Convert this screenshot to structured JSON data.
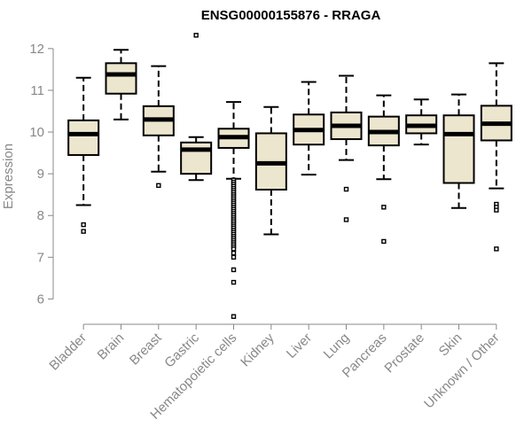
{
  "chart_data": {
    "type": "box",
    "title": "ENSG00000155876 - RRAGA",
    "ylabel": "Expression",
    "xlabel": "",
    "ylim": [
      5.5,
      12.4
    ],
    "yticks": [
      6,
      7,
      8,
      9,
      10,
      11,
      12
    ],
    "grid": false,
    "colors": {
      "box_fill": "#ede6cf",
      "box_stroke": "#000000",
      "median": "#000000",
      "axis": "#888888"
    },
    "categories": [
      "Bladder",
      "Brain",
      "Breast",
      "Gastric",
      "Hematopoietic cells",
      "Kidney",
      "Liver",
      "Lung",
      "Pancreas",
      "Prostate",
      "Skin",
      "Unknown / Other"
    ],
    "boxes": [
      {
        "name": "Bladder",
        "whisker_low": 8.25,
        "q1": 9.45,
        "median": 9.95,
        "q3": 10.28,
        "whisker_high": 11.3,
        "outliers": [
          7.78,
          7.62
        ]
      },
      {
        "name": "Brain",
        "whisker_low": 10.3,
        "q1": 10.92,
        "median": 11.38,
        "q3": 11.65,
        "whisker_high": 11.97,
        "outliers": []
      },
      {
        "name": "Breast",
        "whisker_low": 9.05,
        "q1": 9.92,
        "median": 10.3,
        "q3": 10.62,
        "whisker_high": 11.58,
        "outliers": [
          8.72
        ]
      },
      {
        "name": "Gastric",
        "whisker_low": 8.85,
        "q1": 9.0,
        "median": 9.58,
        "q3": 9.75,
        "whisker_high": 9.88,
        "outliers": [
          12.32
        ]
      },
      {
        "name": "Hematopoietic cells",
        "whisker_low": 8.88,
        "q1": 9.62,
        "median": 9.88,
        "q3": 10.08,
        "whisker_high": 10.72,
        "outliers": [
          8.85,
          8.8,
          8.75,
          8.7,
          8.65,
          8.6,
          8.55,
          8.5,
          8.45,
          8.4,
          8.35,
          8.3,
          8.25,
          8.2,
          8.15,
          8.1,
          8.05,
          8.0,
          7.95,
          7.9,
          7.85,
          7.8,
          7.75,
          7.7,
          7.65,
          7.6,
          7.55,
          7.5,
          7.45,
          7.4,
          7.35,
          7.3,
          7.25,
          7.2,
          7.1,
          7.0,
          6.7,
          6.4,
          5.58
        ]
      },
      {
        "name": "Kidney",
        "whisker_low": 7.55,
        "q1": 8.62,
        "median": 9.25,
        "q3": 9.97,
        "whisker_high": 10.6,
        "outliers": []
      },
      {
        "name": "Liver",
        "whisker_low": 8.98,
        "q1": 9.7,
        "median": 10.05,
        "q3": 10.42,
        "whisker_high": 11.2,
        "outliers": []
      },
      {
        "name": "Lung",
        "whisker_low": 9.33,
        "q1": 9.83,
        "median": 10.15,
        "q3": 10.47,
        "whisker_high": 11.35,
        "outliers": [
          8.63,
          7.9
        ]
      },
      {
        "name": "Pancreas",
        "whisker_low": 8.87,
        "q1": 9.68,
        "median": 10.0,
        "q3": 10.37,
        "whisker_high": 10.88,
        "outliers": [
          8.2,
          7.38
        ]
      },
      {
        "name": "Prostate",
        "whisker_low": 9.7,
        "q1": 9.97,
        "median": 10.15,
        "q3": 10.4,
        "whisker_high": 10.78,
        "outliers": []
      },
      {
        "name": "Skin",
        "whisker_low": 8.18,
        "q1": 8.78,
        "median": 9.95,
        "q3": 10.4,
        "whisker_high": 10.9,
        "outliers": []
      },
      {
        "name": "Unknown / Other",
        "whisker_low": 8.65,
        "q1": 9.8,
        "median": 10.2,
        "q3": 10.63,
        "whisker_high": 11.65,
        "outliers": [
          8.27,
          8.2,
          8.13,
          7.2
        ]
      }
    ]
  }
}
